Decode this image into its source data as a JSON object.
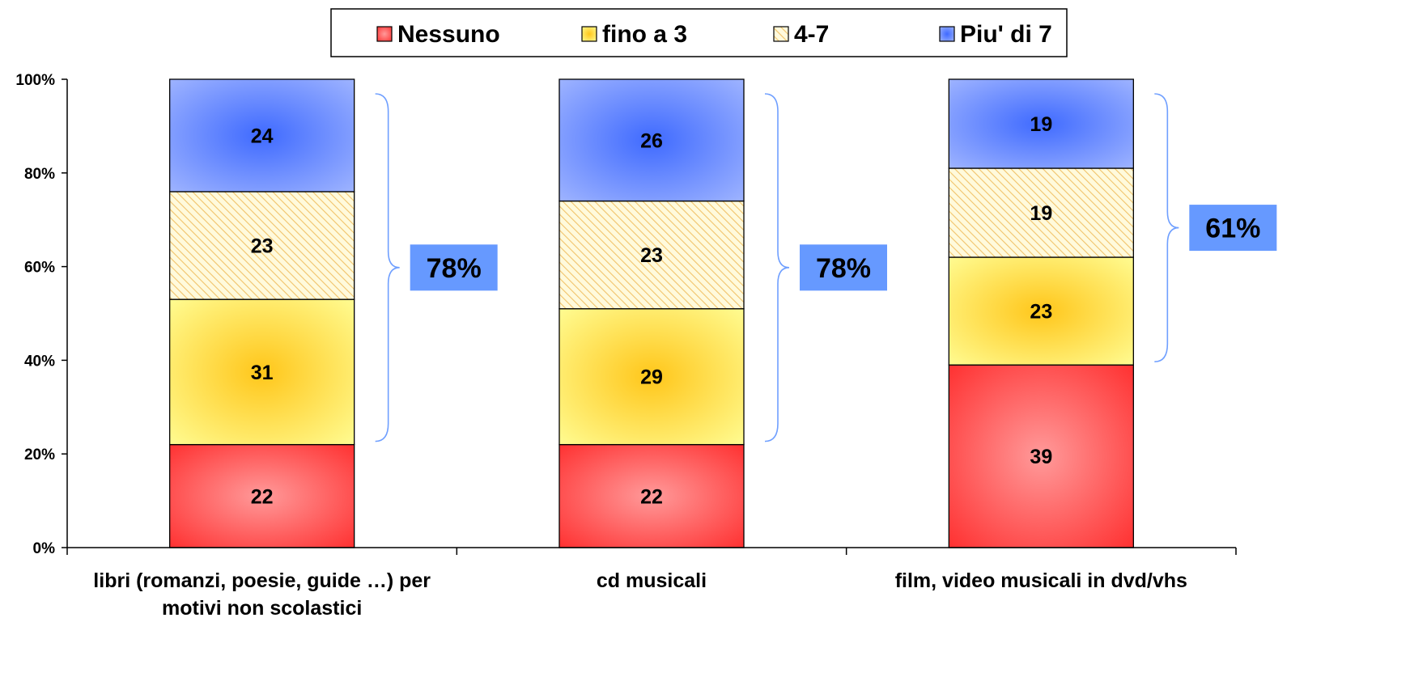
{
  "chart_data": {
    "type": "bar",
    "stacked": true,
    "categories": [
      [
        "libri (romanzi, poesie, guide …) per",
        "motivi non scolastici"
      ],
      [
        "cd musicali"
      ],
      [
        "film, video musicali in dvd/vhs"
      ]
    ],
    "series": [
      {
        "name": "Nessuno",
        "values": [
          22,
          22,
          39
        ],
        "color": "#ff2a2a",
        "glow": "#ff9a9a",
        "pattern": "gradient"
      },
      {
        "name": "fino a 3",
        "values": [
          31,
          29,
          23
        ],
        "color": "#ffff99",
        "glow": "#ffc61a",
        "pattern": "gradient"
      },
      {
        "name": "4-7",
        "values": [
          23,
          23,
          19
        ],
        "color": "#fffadc",
        "stripe": "#f1c36a",
        "pattern": "hatch"
      },
      {
        "name": "Piu' di 7",
        "values": [
          24,
          26,
          19
        ],
        "color": "#a4b8ff",
        "glow": "#3f6aff",
        "pattern": "gradient"
      }
    ],
    "y_ticks": [
      "0%",
      "20%",
      "40%",
      "60%",
      "80%",
      "100%"
    ],
    "ylim": [
      0,
      100
    ],
    "legend_position": "top",
    "grid": false,
    "annotations": [
      {
        "text": "78%",
        "bracket_from": 22,
        "bracket_to": 100
      },
      {
        "text": "78%",
        "bracket_from": 22,
        "bracket_to": 100
      },
      {
        "text": "61%",
        "bracket_from": 39,
        "bracket_to": 100
      }
    ],
    "annotation_color": "#6699ff",
    "bracket_color": "#6f9fff"
  }
}
